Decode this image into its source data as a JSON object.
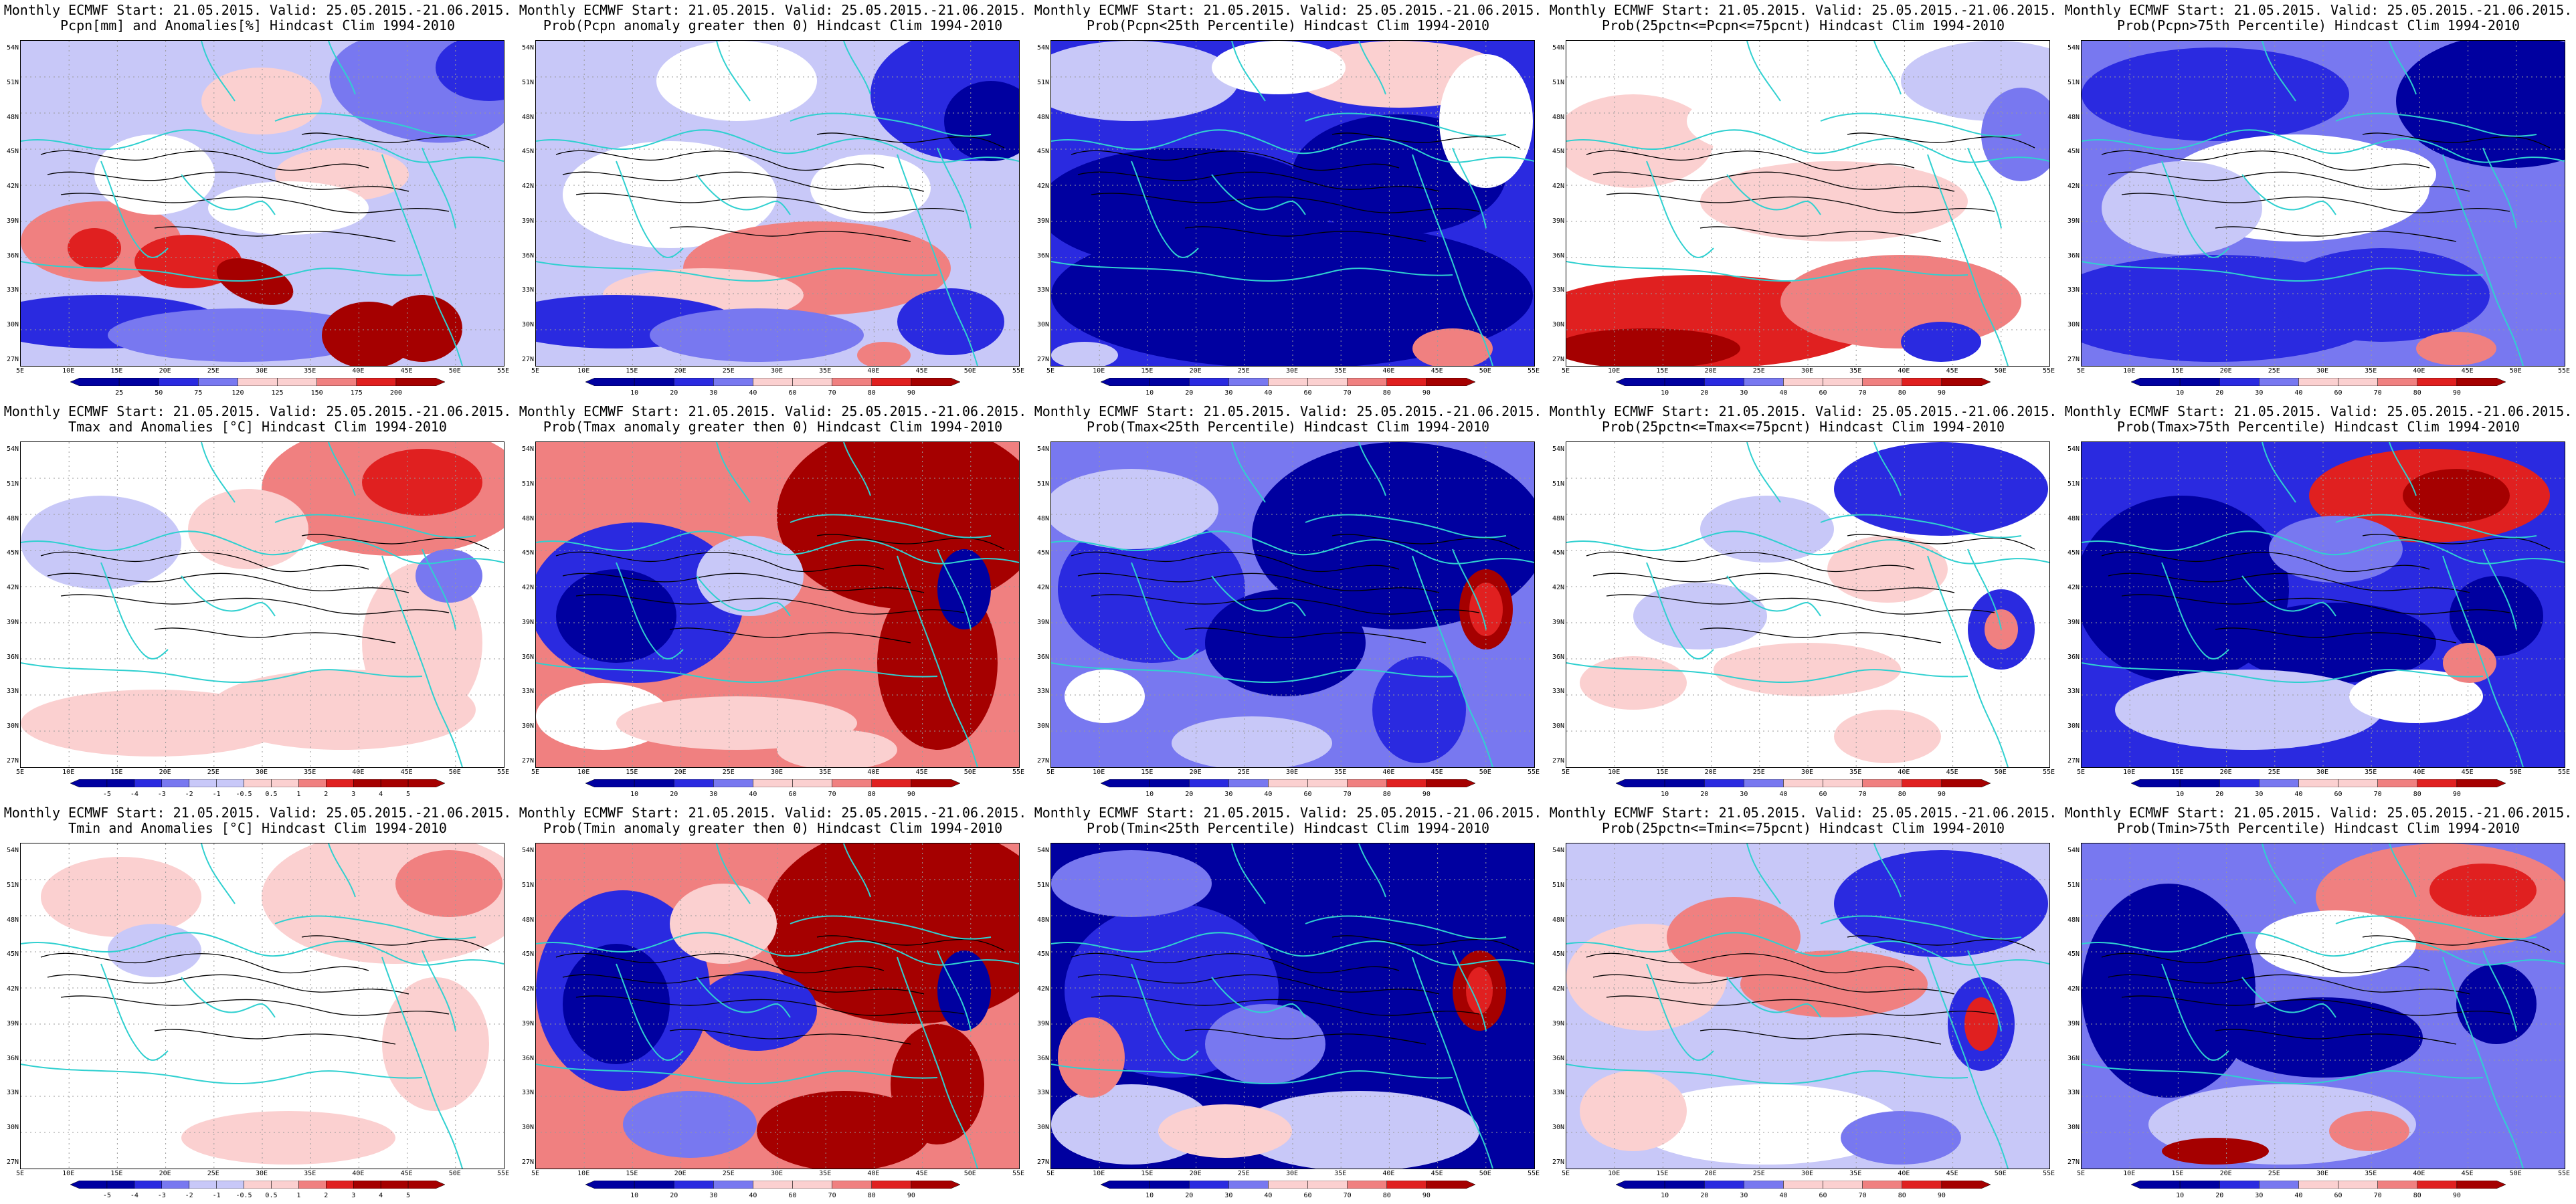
{
  "lat_labels": [
    "54N",
    "51N",
    "48N",
    "45N",
    "42N",
    "39N",
    "36N",
    "33N",
    "30N",
    "27N"
  ],
  "lon_labels": [
    "5E",
    "10E",
    "15E",
    "20E",
    "25E",
    "30E",
    "35E",
    "40E",
    "45E",
    "50E",
    "55E"
  ],
  "colors": {
    "dark_red": "#a50000",
    "red": "#e02020",
    "mid_red": "#f08080",
    "light_red": "#fbd0d0",
    "white": "#ffffff",
    "light_blue": "#c8c8f8",
    "mid_blue": "#7878f0",
    "blue": "#2a2ae0",
    "dark_blue": "#0000a0",
    "coast": "#30d0d0",
    "contour": "#000000"
  },
  "panels": [
    {
      "id": "pcpn-anom",
      "line1": "Monthly ECMWF Start: 21.05.2015. Valid: 25.05.2015.-21.06.2015.",
      "line2": "Pcpn[mm] and Anomalies[%] Hindcast Clim 1994-2010",
      "field": "pcpn_anom",
      "colorbar": [
        "25",
        "50",
        "75",
        "120",
        "125",
        "150",
        "175",
        "200"
      ]
    },
    {
      "id": "pcpn-prob-gt0",
      "line1": "Monthly ECMWF Start: 21.05.2015. Valid: 25.05.2015.-21.06.2015.",
      "line2": "Prob(Pcpn anomaly greater then 0) Hindcast Clim 1994-2010",
      "field": "pcpn_gt0",
      "colorbar": [
        "10",
        "20",
        "30",
        "40",
        "60",
        "70",
        "80",
        "90"
      ]
    },
    {
      "id": "pcpn-prob-lt25",
      "line1": "Monthly ECMWF Start: 21.05.2015. Valid: 25.05.2015.-21.06.2015.",
      "line2": "Prob(Pcpn<25th Percentile) Hindcast Clim 1994-2010",
      "field": "pcpn_lt25",
      "colorbar": [
        "10",
        "20",
        "30",
        "40",
        "60",
        "70",
        "80",
        "90"
      ]
    },
    {
      "id": "pcpn-prob-mid",
      "line1": "Monthly ECMWF Start: 21.05.2015. Valid: 25.05.2015.-21.06.2015.",
      "line2": "Prob(25pctn<=Pcpn<=75pcnt) Hindcast Clim 1994-2010",
      "field": "pcpn_mid",
      "colorbar": [
        "10",
        "20",
        "30",
        "40",
        "60",
        "70",
        "80",
        "90"
      ]
    },
    {
      "id": "pcpn-prob-gt75",
      "line1": "Monthly ECMWF Start: 21.05.2015. Valid: 25.05.2015.-21.06.2015.",
      "line2": "Prob(Pcpn>75th Percentile) Hindcast Clim 1994-2010",
      "field": "pcpn_gt75",
      "colorbar": [
        "10",
        "20",
        "30",
        "40",
        "60",
        "70",
        "80",
        "90"
      ]
    },
    {
      "id": "tmax-anom",
      "line1": "Monthly ECMWF Start: 21.05.2015. Valid: 25.05.2015.-21.06.2015.",
      "line2": "Tmax and Anomalies [°C] Hindcast Clim 1994-2010",
      "field": "tmax_anom",
      "colorbar": [
        "-5",
        "-4",
        "-3",
        "-2",
        "-1",
        "-0.5",
        "0.5",
        "1",
        "2",
        "3",
        "4",
        "5"
      ]
    },
    {
      "id": "tmax-prob-gt0",
      "line1": "Monthly ECMWF Start: 21.05.2015. Valid: 25.05.2015.-21.06.2015.",
      "line2": "Prob(Tmax anomaly greater then 0) Hindcast Clim 1994-2010",
      "field": "tmax_gt0",
      "colorbar": [
        "10",
        "20",
        "30",
        "40",
        "60",
        "70",
        "80",
        "90"
      ]
    },
    {
      "id": "tmax-prob-lt25",
      "line1": "Monthly ECMWF Start: 21.05.2015. Valid: 25.05.2015.-21.06.2015.",
      "line2": "Prob(Tmax<25th Percentile) Hindcast Clim 1994-2010",
      "field": "tmax_lt25",
      "colorbar": [
        "10",
        "20",
        "30",
        "40",
        "60",
        "70",
        "80",
        "90"
      ]
    },
    {
      "id": "tmax-prob-mid",
      "line1": "Monthly ECMWF Start: 21.05.2015. Valid: 25.05.2015.-21.06.2015.",
      "line2": "Prob(25pctn<=Tmax<=75pcnt) Hindcast Clim 1994-2010",
      "field": "tmax_mid",
      "colorbar": [
        "10",
        "20",
        "30",
        "40",
        "60",
        "70",
        "80",
        "90"
      ]
    },
    {
      "id": "tmax-prob-gt75",
      "line1": "Monthly ECMWF Start: 21.05.2015. Valid: 25.05.2015.-21.06.2015.",
      "line2": "Prob(Tmax>75th Percentile) Hindcast Clim 1994-2010",
      "field": "tmax_gt75",
      "colorbar": [
        "10",
        "20",
        "30",
        "40",
        "60",
        "70",
        "80",
        "90"
      ]
    },
    {
      "id": "tmin-anom",
      "line1": "Monthly ECMWF Start: 21.05.2015. Valid: 25.05.2015.-21.06.2015.",
      "line2": "Tmin and Anomalies [°C] Hindcast Clim 1994-2010",
      "field": "tmin_anom",
      "colorbar": [
        "-5",
        "-4",
        "-3",
        "-2",
        "-1",
        "-0.5",
        "0.5",
        "1",
        "2",
        "3",
        "4",
        "5"
      ]
    },
    {
      "id": "tmin-prob-gt0",
      "line1": "Monthly ECMWF Start: 21.05.2015. Valid: 25.05.2015.-21.06.2015.",
      "line2": "Prob(Tmin anomaly greater then 0) Hindcast Clim 1994-2010",
      "field": "tmin_gt0",
      "colorbar": [
        "10",
        "20",
        "30",
        "40",
        "60",
        "70",
        "80",
        "90"
      ]
    },
    {
      "id": "tmin-prob-lt25",
      "line1": "Monthly ECMWF Start: 21.05.2015. Valid: 25.05.2015.-21.06.2015.",
      "line2": "Prob(Tmin<25th Percentile) Hindcast Clim 1994-2010",
      "field": "tmin_lt25",
      "colorbar": [
        "10",
        "20",
        "30",
        "40",
        "60",
        "70",
        "80",
        "90"
      ]
    },
    {
      "id": "tmin-prob-mid",
      "line1": "Monthly ECMWF Start: 21.05.2015. Valid: 25.05.2015.-21.06.2015.",
      "line2": "Prob(25pctn<=Tmin<=75pcnt) Hindcast Clim 1994-2010",
      "field": "tmin_mid",
      "colorbar": [
        "10",
        "20",
        "30",
        "40",
        "60",
        "70",
        "80",
        "90"
      ]
    },
    {
      "id": "tmin-prob-gt75",
      "line1": "Monthly ECMWF Start: 21.05.2015. Valid: 25.05.2015.-21.06.2015.",
      "line2": "Prob(Tmin>75th Percentile) Hindcast Clim 1994-2010",
      "field": "tmin_gt75",
      "colorbar": [
        "10",
        "20",
        "30",
        "40",
        "60",
        "70",
        "80",
        "90"
      ]
    }
  ]
}
